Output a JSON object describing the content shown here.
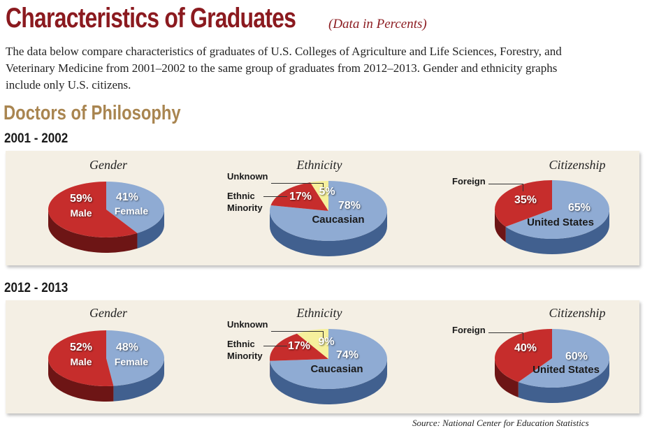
{
  "header": {
    "title": "Characteristics of Graduates",
    "subtitle": "(Data in Percents)",
    "intro": "The data below compare characteristics of graduates of U.S. Colleges of Agriculture and Life Sciences, Forestry, and Veterinary Medicine from 2001–2002 to the same group of graduates from 2012–2013. Gender and ethnicity graphs include only U.S. citizens."
  },
  "section": "Doctors of Philosophy",
  "source": "Source:  National Center for Education Statistics",
  "colors": {
    "blue": "#8fabd3",
    "blue_side": "#41608f",
    "red": "#c62d2c",
    "red_side": "#6d1515",
    "yellow": "#f6f09c",
    "yellow_side": "#b5ab4e",
    "panel": "#f4efe4"
  },
  "chart_data": [
    {
      "type": "pie",
      "period": "2001 - 2002",
      "title": "Gender",
      "slices": [
        {
          "label": "Female",
          "value": 41,
          "color": "blue"
        },
        {
          "label": "Male",
          "value": 59,
          "color": "red"
        }
      ]
    },
    {
      "type": "pie",
      "period": "2001 - 2002",
      "title": "Ethnicity",
      "slices": [
        {
          "label": "Caucasian",
          "value": 78,
          "color": "blue"
        },
        {
          "label": "Ethnic Minority",
          "value": 17,
          "color": "red"
        },
        {
          "label": "Unknown",
          "value": 5,
          "color": "yellow"
        }
      ]
    },
    {
      "type": "pie",
      "period": "2001 - 2002",
      "title": "Citizenship",
      "slices": [
        {
          "label": "United States",
          "value": 65,
          "color": "blue"
        },
        {
          "label": "Foreign",
          "value": 35,
          "color": "red"
        }
      ]
    },
    {
      "type": "pie",
      "period": "2012 - 2013",
      "title": "Gender",
      "slices": [
        {
          "label": "Female",
          "value": 48,
          "color": "blue"
        },
        {
          "label": "Male",
          "value": 52,
          "color": "red"
        }
      ]
    },
    {
      "type": "pie",
      "period": "2012 - 2013",
      "title": "Ethnicity",
      "slices": [
        {
          "label": "Caucasian",
          "value": 74,
          "color": "blue"
        },
        {
          "label": "Ethnic Minority",
          "value": 17,
          "color": "red"
        },
        {
          "label": "Unknown",
          "value": 9,
          "color": "yellow"
        }
      ]
    },
    {
      "type": "pie",
      "period": "2012 - 2013",
      "title": "Citizenship",
      "slices": [
        {
          "label": "United States",
          "value": 60,
          "color": "blue"
        },
        {
          "label": "Foreign",
          "value": 40,
          "color": "red"
        }
      ]
    }
  ],
  "labels": {
    "r1": {
      "male_pct": "59%",
      "female_pct": "41%",
      "unknown_pct": "5%",
      "minority_pct": "17%",
      "cauc_pct": "78%",
      "foreign_pct": "35%",
      "us_pct": "65%"
    },
    "r2": {
      "male_pct": "52%",
      "female_pct": "48%",
      "unknown_pct": "9%",
      "minority_pct": "17%",
      "cauc_pct": "74%",
      "foreign_pct": "40%",
      "us_pct": "60%"
    },
    "male": "Male",
    "female": "Female",
    "unknown": "Unknown",
    "ethnic": "Ethnic",
    "minority": "Minority",
    "caucasian": "Caucasian",
    "foreign": "Foreign",
    "us": "United States"
  }
}
